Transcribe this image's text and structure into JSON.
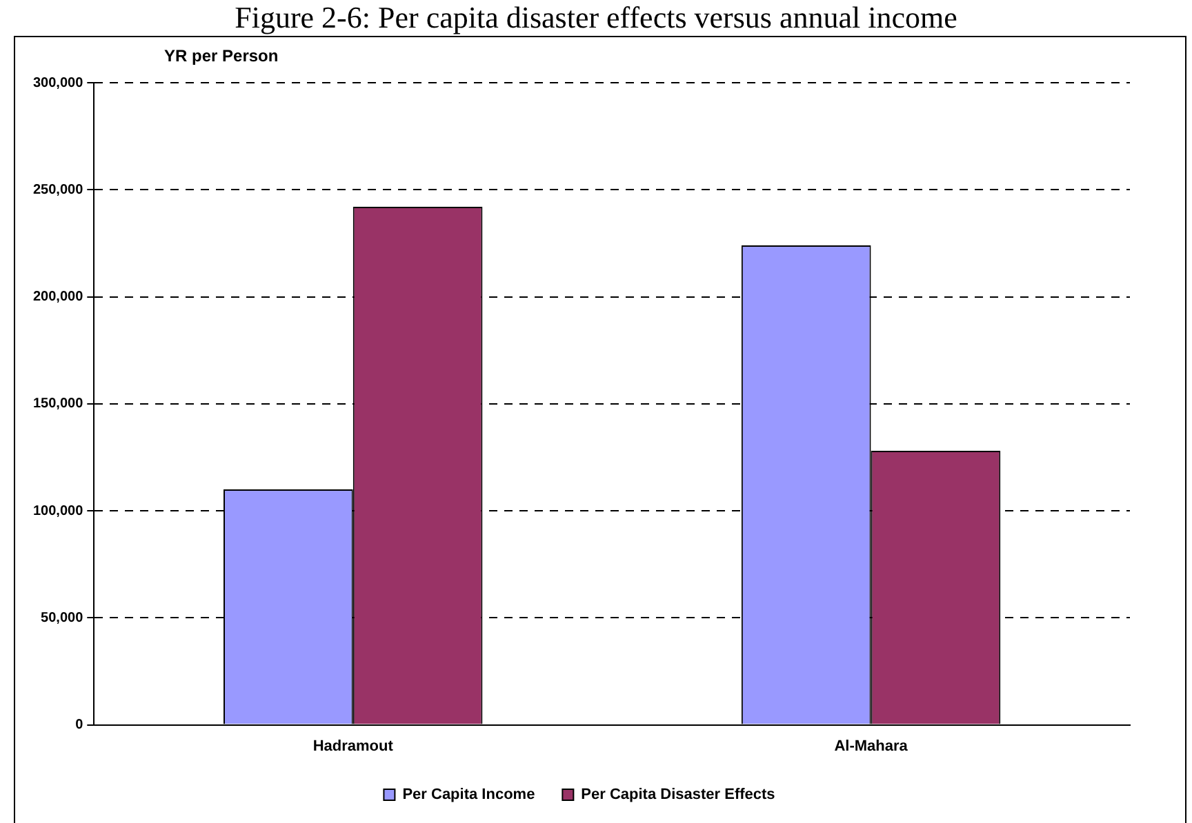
{
  "chart_data": {
    "type": "bar",
    "title": "Figure 2-6: Per capita disaster effects versus annual income",
    "ylabel": "YR per Person",
    "categories": [
      "Hadramout",
      "Al-Mahara"
    ],
    "series": [
      {
        "name": "Per Capita Income",
        "color": "#9999ff",
        "values": [
          110000,
          224000
        ]
      },
      {
        "name": "Per Capita Disaster Effects",
        "color": "#993366",
        "values": [
          242000,
          128000
        ]
      }
    ],
    "ylim": [
      0,
      300000
    ],
    "yticks": [
      0,
      {
        "value": 50000,
        "label": "50,000"
      },
      {
        "value": 100000,
        "label": "100,000"
      },
      {
        "value": 150000,
        "label": "150,000"
      },
      {
        "value": 200000,
        "label": "200,000"
      },
      {
        "value": 250000,
        "label": "250,000"
      },
      {
        "value": 300000,
        "label": "300,000"
      }
    ],
    "grid": "y",
    "legend": "bottom"
  }
}
